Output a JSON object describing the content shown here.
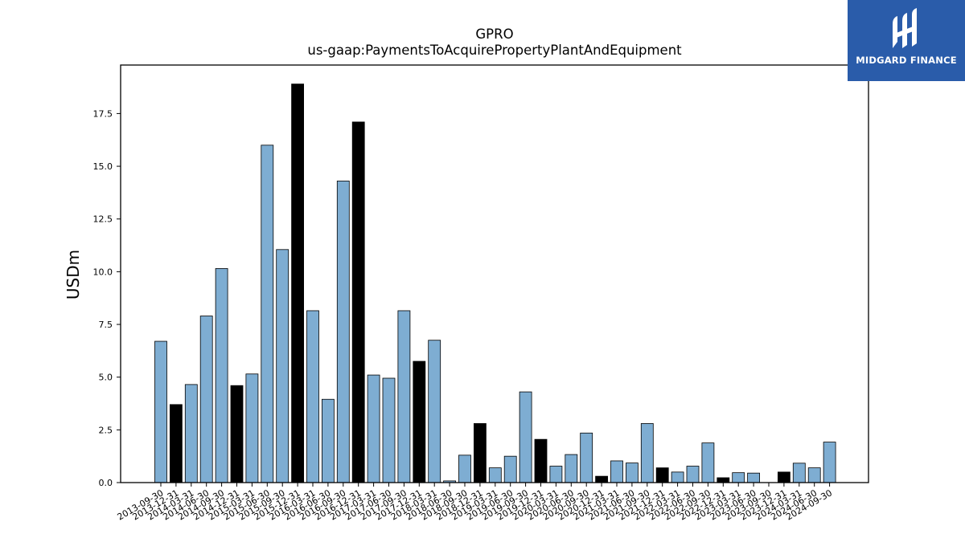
{
  "chart_data": {
    "type": "bar",
    "title": "GPRO",
    "subtitle": "us-gaap:PaymentsToAcquirePropertyPlantAndEquipment",
    "ylabel": "USDm",
    "xlabel": "",
    "ylim": [
      0,
      19.8
    ],
    "yticks": [
      "0.0",
      "2.5",
      "5.0",
      "7.5",
      "10.0",
      "12.5",
      "15.0",
      "17.5"
    ],
    "colors": {
      "quarter": "#7eadd2",
      "annual": "#000000",
      "edge": "#000000"
    },
    "categories": [
      "2013-09-30",
      "2013-12-31",
      "2014-03-31",
      "2014-06-30",
      "2014-09-30",
      "2014-12-31",
      "2015-03-31",
      "2015-06-30",
      "2015-09-30",
      "2015-12-31",
      "2016-03-31",
      "2016-06-30",
      "2016-09-30",
      "2016-12-31",
      "2017-03-31",
      "2017-06-30",
      "2017-09-30",
      "2017-12-31",
      "2018-03-31",
      "2018-06-30",
      "2018-09-30",
      "2018-12-31",
      "2019-03-31",
      "2019-06-30",
      "2019-09-30",
      "2019-12-31",
      "2020-03-31",
      "2020-06-30",
      "2020-09-30",
      "2020-12-31",
      "2021-03-31",
      "2021-06-30",
      "2021-09-30",
      "2021-12-31",
      "2022-03-31",
      "2022-06-30",
      "2022-09-30",
      "2022-12-31",
      "2023-03-31",
      "2023-06-30",
      "2023-09-30",
      "2023-12-31",
      "2024-03-31",
      "2024-06-30",
      "2024-09-30"
    ],
    "values": [
      6.7,
      3.7,
      4.65,
      7.9,
      10.15,
      4.6,
      5.15,
      16.0,
      11.05,
      18.9,
      8.15,
      3.95,
      14.3,
      17.1,
      5.1,
      4.95,
      8.15,
      5.75,
      6.75,
      0.08,
      1.3,
      2.8,
      0.7,
      1.25,
      4.3,
      2.05,
      0.78,
      1.33,
      2.35,
      0.3,
      1.03,
      0.93,
      2.8,
      0.7,
      0.5,
      0.78,
      1.88,
      0.23,
      0.47,
      0.45,
      0.0,
      0.5,
      0.92,
      0.7,
      1.92
    ],
    "annual": [
      false,
      true,
      false,
      false,
      false,
      true,
      false,
      false,
      false,
      true,
      false,
      false,
      false,
      true,
      false,
      false,
      false,
      true,
      false,
      false,
      false,
      true,
      false,
      false,
      false,
      true,
      false,
      false,
      false,
      true,
      false,
      false,
      false,
      true,
      false,
      false,
      false,
      true,
      false,
      false,
      false,
      true,
      false,
      false,
      false
    ],
    "grid": false,
    "legend": "none"
  },
  "logo": {
    "text": "MIDGARD FINANCE",
    "icon": "midgard-logo-icon"
  }
}
